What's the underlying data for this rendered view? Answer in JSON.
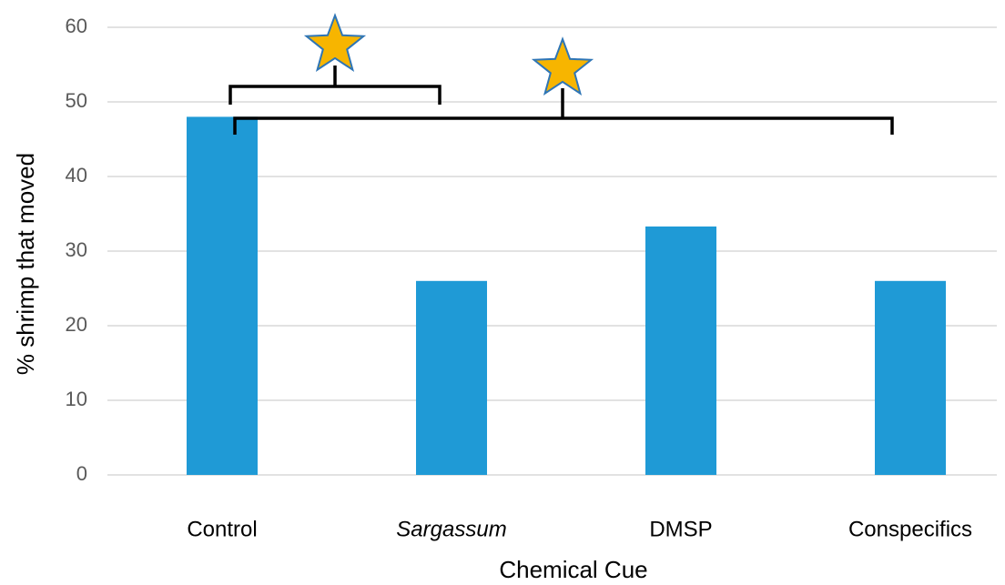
{
  "chart_data": {
    "type": "bar",
    "categories": [
      "Control",
      "Sargassum",
      "DMSP",
      "Conspecifics"
    ],
    "values": [
      48,
      26,
      33.3,
      26
    ],
    "color": "#1f9ad6",
    "x_label": "Chemical Cue",
    "y_label": "% shrimp that moved",
    "ylim": [
      0,
      60
    ],
    "yticks": [
      0,
      10,
      20,
      30,
      40,
      50,
      60
    ],
    "grid": true
  }
}
